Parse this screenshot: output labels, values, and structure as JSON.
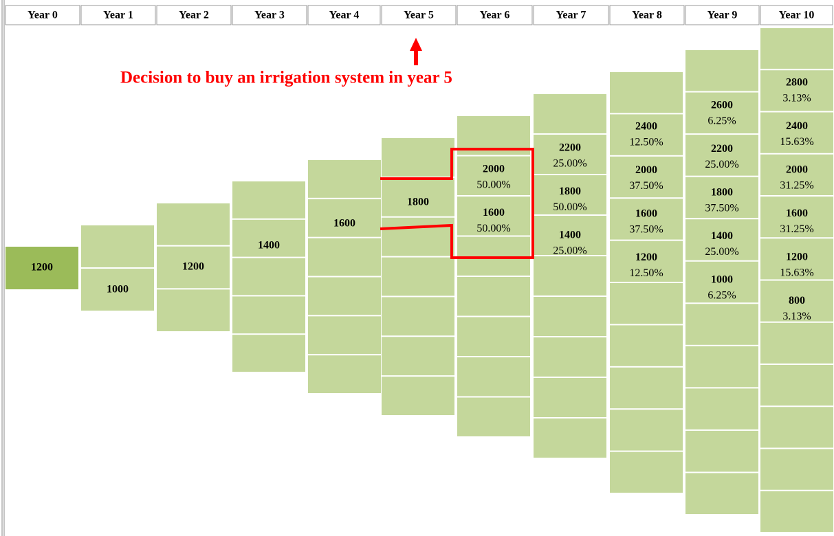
{
  "header": {
    "columns": [
      "Year 0",
      "Year 1",
      "Year 2",
      "Year 3",
      "Year 4",
      "Year 5",
      "Year 6",
      "Year 7",
      "Year 8",
      "Year 9",
      "Year 10"
    ]
  },
  "annotation": "Decision to buy an irrigation system in year 5",
  "tree": [
    [
      {
        "value": 1200
      }
    ],
    [
      {
        "value": 1000
      }
    ],
    [
      {
        "value": 1200
      }
    ],
    [
      {
        "value": 1400
      }
    ],
    [
      {
        "value": 1600
      }
    ],
    [
      {
        "value": 1800
      }
    ],
    [
      {
        "value": 2000,
        "probability": "50.00%"
      },
      {
        "value": 1600,
        "probability": "50.00%"
      }
    ],
    [
      {
        "value": 2200,
        "probability": "25.00%"
      },
      {
        "value": 1800,
        "probability": "50.00%"
      },
      {
        "value": 1400,
        "probability": "25.00%"
      }
    ],
    [
      {
        "value": 2400,
        "probability": "12.50%"
      },
      {
        "value": 2000,
        "probability": "37.50%"
      },
      {
        "value": 1600,
        "probability": "37.50%"
      },
      {
        "value": 1200,
        "probability": "12.50%"
      }
    ],
    [
      {
        "value": 2600,
        "probability": "6.25%"
      },
      {
        "value": 2200,
        "probability": "25.00%"
      },
      {
        "value": 1800,
        "probability": "37.50%"
      },
      {
        "value": 1400,
        "probability": "25.00%"
      },
      {
        "value": 1000,
        "probability": "6.25%"
      }
    ],
    [
      {
        "value": 2800,
        "probability": "3.13%"
      },
      {
        "value": 2400,
        "probability": "15.63%"
      },
      {
        "value": 2000,
        "probability": "31.25%"
      },
      {
        "value": 1600,
        "probability": "31.25%"
      },
      {
        "value": 1200,
        "probability": "15.63%"
      },
      {
        "value": 800,
        "probability": "3.13%"
      }
    ]
  ]
}
